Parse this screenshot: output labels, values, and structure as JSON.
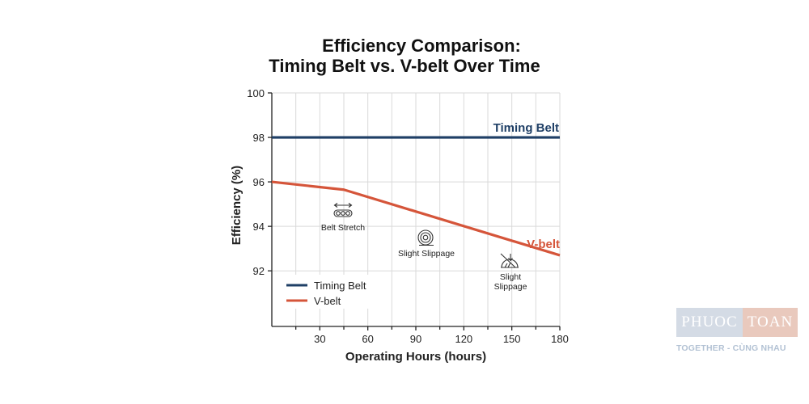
{
  "chart_data": {
    "type": "line",
    "title_lines": [
      "Efficiency Comparison:",
      "Timing Belt vs. V-belt Over Time"
    ],
    "xlabel": "Operating Hours (hours)",
    "ylabel": "Efficiency (%)",
    "xlim": [
      0,
      180
    ],
    "ylim": [
      89.5,
      100
    ],
    "x_ticks": [
      30,
      60,
      90,
      120,
      150,
      180
    ],
    "x_minor_ticks": [
      15,
      45,
      75,
      105,
      135,
      165
    ],
    "y_ticks": [
      92,
      94,
      96,
      98,
      100
    ],
    "grid": true,
    "legend_position": "bottom-left",
    "series": [
      {
        "name": "Timing Belt",
        "color": "#1f3f66",
        "x": [
          0,
          180
        ],
        "y": [
          98,
          98
        ]
      },
      {
        "name": "V-belt",
        "color": "#d5553a",
        "x": [
          0,
          45,
          180
        ],
        "y": [
          96,
          95.65,
          92.7
        ]
      }
    ],
    "series_labels": [
      "Timing Belt",
      "V-belt"
    ],
    "annotations": [
      {
        "lines": [
          "Belt Stretch"
        ],
        "icon": "belt-stretch-icon",
        "x": 45,
        "y": 95.65
      },
      {
        "lines": [
          "Slight Slippage"
        ],
        "icon": "pulley-icon",
        "x": 97,
        "y": 94.7
      },
      {
        "lines": [
          "Slight",
          "Slippage"
        ],
        "icon": "slip-icon",
        "x": 150,
        "y": 93.4
      }
    ]
  },
  "watermark": {
    "left": "PHUOC",
    "right": "TOAN",
    "tagline": "TOGETHER - CÙNG NHAU"
  }
}
